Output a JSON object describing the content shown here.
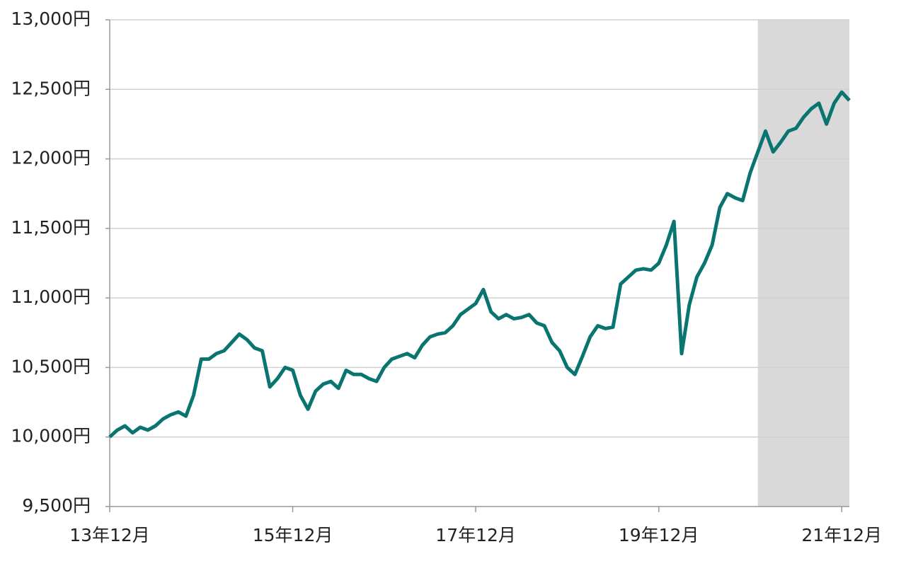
{
  "chart_data": {
    "type": "line",
    "categories": [
      "13年12月",
      null,
      null,
      null,
      null,
      null,
      null,
      null,
      null,
      null,
      null,
      null,
      null,
      null,
      null,
      null,
      null,
      null,
      null,
      null,
      null,
      null,
      null,
      null,
      "15年12月",
      null,
      null,
      null,
      null,
      null,
      null,
      null,
      null,
      null,
      null,
      null,
      null,
      null,
      null,
      null,
      null,
      null,
      null,
      null,
      null,
      null,
      null,
      null,
      "17年12月",
      null,
      null,
      null,
      null,
      null,
      null,
      null,
      null,
      null,
      null,
      null,
      null,
      null,
      null,
      null,
      null,
      null,
      null,
      null,
      null,
      null,
      null,
      null,
      "19年12月",
      null,
      null,
      null,
      null,
      null,
      null,
      null,
      null,
      null,
      null,
      null,
      null,
      null,
      null,
      null,
      null,
      null,
      null,
      null,
      null,
      null,
      null,
      null,
      "21年12月",
      null
    ],
    "series": [
      {
        "color": "#0a7570",
        "values": [
          10000,
          10050,
          10080,
          10030,
          10070,
          10050,
          10080,
          10130,
          10160,
          10180,
          10150,
          10300,
          10560,
          10560,
          10600,
          10620,
          10680,
          10740,
          10700,
          10640,
          10620,
          10360,
          10420,
          10500,
          10480,
          10300,
          10200,
          10330,
          10380,
          10400,
          10350,
          10480,
          10450,
          10450,
          10420,
          10400,
          10500,
          10560,
          10580,
          10600,
          10570,
          10660,
          10720,
          10740,
          10750,
          10800,
          10880,
          10920,
          10960,
          11060,
          10900,
          10850,
          10880,
          10850,
          10860,
          10880,
          10820,
          10800,
          10680,
          10620,
          10500,
          10450,
          10580,
          10720,
          10800,
          10780,
          10790,
          11100,
          11150,
          11200,
          11210,
          11200,
          11250,
          11380,
          11550,
          10600,
          10950,
          11150,
          11250,
          11380,
          11650,
          11750,
          11720,
          11700,
          11900,
          12050,
          12200,
          12050,
          12120,
          12200,
          12220,
          12300,
          12360,
          12400,
          12250,
          12400,
          12480,
          12420
        ]
      }
    ],
    "ylim": [
      9500,
      13000
    ],
    "yticks": [
      {
        "value": 9500,
        "label": "9,500円"
      },
      {
        "value": 10000,
        "label": "10,000円"
      },
      {
        "value": 10500,
        "label": "10,500円"
      },
      {
        "value": 11000,
        "label": "11,000円"
      },
      {
        "value": 11500,
        "label": "11,500円"
      },
      {
        "value": 12000,
        "label": "12,000円"
      },
      {
        "value": 12500,
        "label": "12,500円"
      },
      {
        "value": 13000,
        "label": "13,000円"
      }
    ],
    "grid": true,
    "highlight": {
      "from": 85,
      "to": 97,
      "color": "#d9d9d9"
    }
  }
}
